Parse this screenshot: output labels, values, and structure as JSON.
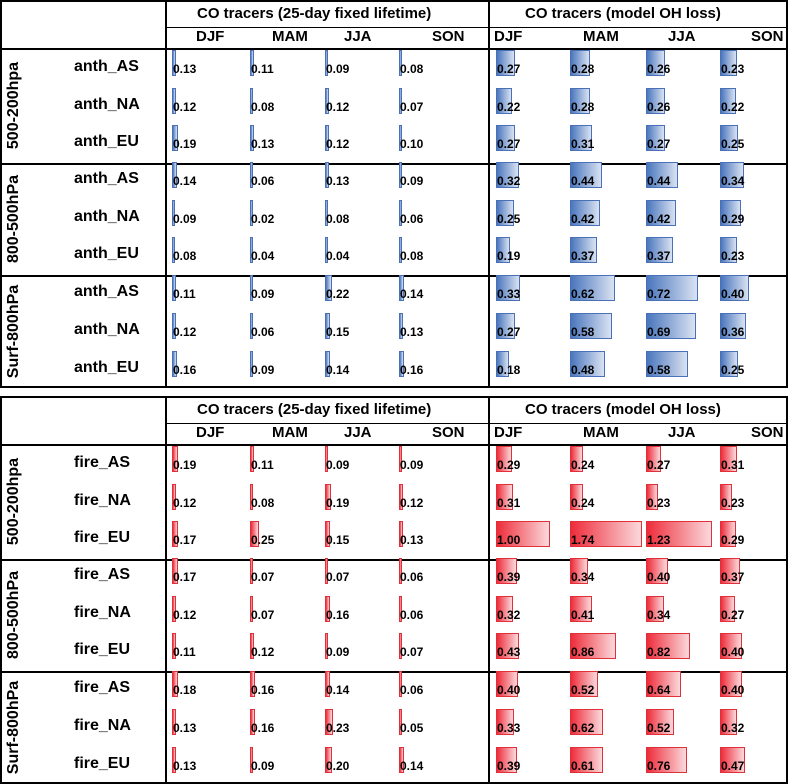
{
  "chart_data": [
    {
      "type": "table",
      "bar_color": "#4a76bd",
      "group_header_1": "CO  tracers (25-day fixed lifetime)",
      "group_header_2": "CO  tracers (model OH loss)",
      "seasons": [
        "DJF",
        "MAM",
        "JJA",
        "SON"
      ],
      "groups": [
        {
          "label": "500-200hpa",
          "rows": [
            {
              "label": "anth_AS",
              "fixed": [
                "0.13",
                "0.11",
                "0.09",
                "0.08"
              ],
              "oh": [
                "0.27",
                "0.28",
                "0.26",
                "0.23"
              ]
            },
            {
              "label": "anth_NA",
              "fixed": [
                "0.12",
                "0.08",
                "0.12",
                "0.07"
              ],
              "oh": [
                "0.22",
                "0.28",
                "0.26",
                "0.22"
              ]
            },
            {
              "label": "anth_EU",
              "fixed": [
                "0.19",
                "0.13",
                "0.12",
                "0.10"
              ],
              "oh": [
                "0.27",
                "0.31",
                "0.27",
                "0.25"
              ]
            }
          ]
        },
        {
          "label": "800-500hPa",
          "rows": [
            {
              "label": "anth_AS",
              "fixed": [
                "0.14",
                "0.06",
                "0.13",
                "0.09"
              ],
              "oh": [
                "0.32",
                "0.44",
                "0.44",
                "0.34"
              ]
            },
            {
              "label": "anth_NA",
              "fixed": [
                "0.09",
                "0.02",
                "0.08",
                "0.06"
              ],
              "oh": [
                "0.25",
                "0.42",
                "0.42",
                "0.29"
              ]
            },
            {
              "label": "anth_EU",
              "fixed": [
                "0.08",
                "0.04",
                "0.04",
                "0.08"
              ],
              "oh": [
                "0.19",
                "0.37",
                "0.37",
                "0.23"
              ]
            }
          ]
        },
        {
          "label": "Surf-800hPa",
          "rows": [
            {
              "label": "anth_AS",
              "fixed": [
                "0.11",
                "0.09",
                "0.22",
                "0.14"
              ],
              "oh": [
                "0.33",
                "0.62",
                "0.72",
                "0.40"
              ]
            },
            {
              "label": "anth_NA",
              "fixed": [
                "0.12",
                "0.06",
                "0.15",
                "0.13"
              ],
              "oh": [
                "0.27",
                "0.58",
                "0.69",
                "0.36"
              ]
            },
            {
              "label": "anth_EU",
              "fixed": [
                "0.16",
                "0.09",
                "0.14",
                "0.16"
              ],
              "oh": [
                "0.18",
                "0.48",
                "0.58",
                "0.25"
              ]
            }
          ]
        }
      ]
    },
    {
      "type": "table",
      "bar_color": "#ee2c3a",
      "group_header_1": "CO  tracers (25-day fixed lifetime)",
      "group_header_2": "CO  tracers (model OH loss)",
      "seasons": [
        "DJF",
        "MAM",
        "JJA",
        "SON"
      ],
      "groups": [
        {
          "label": "500-200hpa",
          "rows": [
            {
              "label": "fire_AS",
              "fixed": [
                "0.19",
                "0.11",
                "0.09",
                "0.09"
              ],
              "oh": [
                "0.29",
                "0.24",
                "0.27",
                "0.31"
              ]
            },
            {
              "label": "fire_NA",
              "fixed": [
                "0.12",
                "0.08",
                "0.19",
                "0.12"
              ],
              "oh": [
                "0.31",
                "0.24",
                "0.23",
                "0.23"
              ]
            },
            {
              "label": "fire_EU",
              "fixed": [
                "0.17",
                "0.25",
                "0.15",
                "0.13"
              ],
              "oh": [
                "1.00",
                "1.74",
                "1.23",
                "0.29"
              ]
            }
          ]
        },
        {
          "label": "800-500hPa",
          "rows": [
            {
              "label": "fire_AS",
              "fixed": [
                "0.17",
                "0.07",
                "0.07",
                "0.06"
              ],
              "oh": [
                "0.39",
                "0.34",
                "0.40",
                "0.37"
              ]
            },
            {
              "label": "fire_NA",
              "fixed": [
                "0.12",
                "0.07",
                "0.16",
                "0.06"
              ],
              "oh": [
                "0.32",
                "0.41",
                "0.34",
                "0.27"
              ]
            },
            {
              "label": "fire_EU",
              "fixed": [
                "0.11",
                "0.12",
                "0.09",
                "0.07"
              ],
              "oh": [
                "0.43",
                "0.86",
                "0.82",
                "0.40"
              ]
            }
          ]
        },
        {
          "label": "Surf-800hPa",
          "rows": [
            {
              "label": "fire_AS",
              "fixed": [
                "0.18",
                "0.16",
                "0.14",
                "0.06"
              ],
              "oh": [
                "0.40",
                "0.52",
                "0.64",
                "0.40"
              ]
            },
            {
              "label": "fire_NA",
              "fixed": [
                "0.13",
                "0.16",
                "0.23",
                "0.05"
              ],
              "oh": [
                "0.33",
                "0.62",
                "0.52",
                "0.32"
              ]
            },
            {
              "label": "fire_EU",
              "fixed": [
                "0.13",
                "0.09",
                "0.20",
                "0.14"
              ],
              "oh": [
                "0.39",
                "0.61",
                "0.76",
                "0.47"
              ]
            }
          ]
        }
      ]
    }
  ]
}
